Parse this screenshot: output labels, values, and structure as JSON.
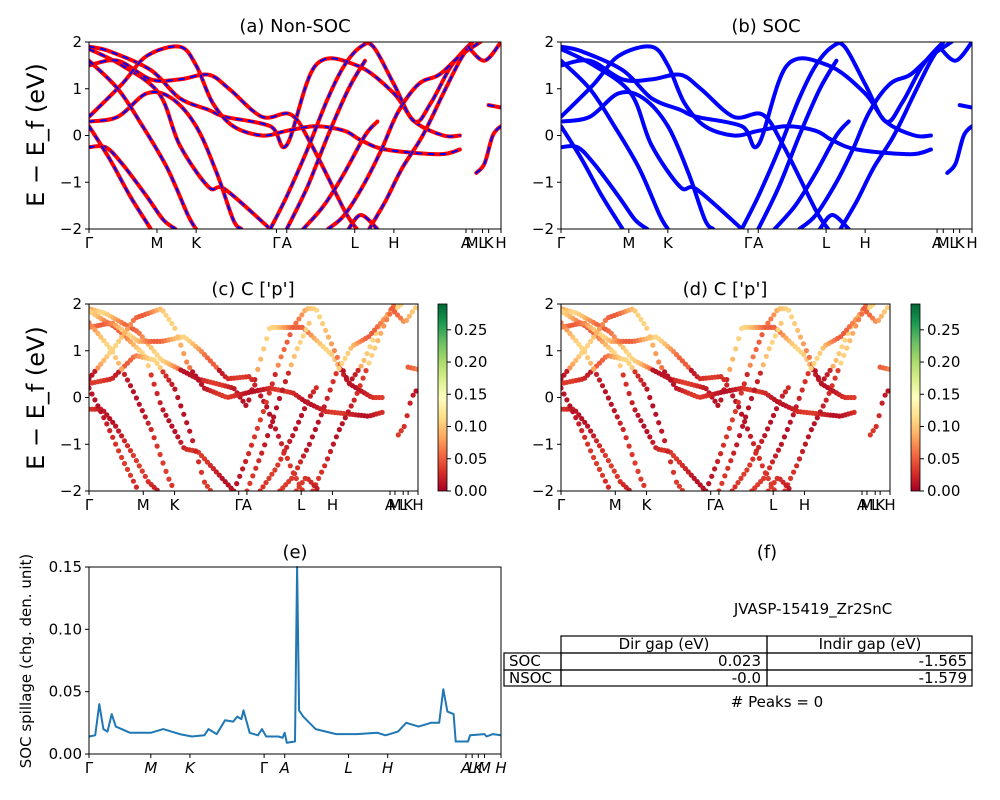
{
  "chart_data": [
    {
      "type": "line",
      "title": "(a) Non-SOC",
      "ylabel": "E − E_f (eV)",
      "ylim": [
        -2,
        2
      ],
      "yticks": [
        "2",
        "1",
        "0",
        "−1",
        "−2"
      ],
      "kpath_labels": [
        "Γ",
        "M",
        "K",
        "Γ",
        "A",
        "L",
        "H",
        "A",
        "M",
        "L",
        "K",
        "H"
      ],
      "series": [
        {
          "color": "#ff0000",
          "bands": [
            [
              [
                0,
                1.9
              ],
              [
                0.05,
                1.8
              ],
              [
                0.15,
                1.4
              ],
              [
                0.22,
                0.8
              ],
              [
                0.29,
                0.55
              ],
              [
                0.33,
                0.4
              ],
              [
                0.44,
                0.2
              ],
              [
                0.48,
                -0.2
              ],
              [
                0.55,
                1.5
              ],
              [
                0.65,
                1.5
              ],
              [
                0.74,
                0.9
              ],
              [
                0.79,
                0.3
              ],
              [
                0.86,
                0.0
              ],
              [
                0.9,
                0.0
              ]
            ],
            [
              [
                0,
                1.85
              ],
              [
                0.08,
                1.5
              ],
              [
                0.17,
                0.9
              ],
              [
                0.22,
                -0.2
              ],
              [
                0.29,
                -1.1
              ],
              [
                0.33,
                -1.15
              ],
              [
                0.44,
                -2
              ]
            ],
            [
              [
                0,
                1.5
              ],
              [
                0.07,
                1.6
              ],
              [
                0.15,
                1.2
              ],
              [
                0.22,
                1.2
              ],
              [
                0.29,
                1.3
              ],
              [
                0.34,
                1.0
              ],
              [
                0.42,
                0.4
              ],
              [
                0.49,
                0.45
              ],
              [
                0.54,
                -0.2
              ],
              [
                0.62,
                -1.6
              ],
              [
                0.65,
                -2
              ]
            ],
            [
              [
                0,
                0.4
              ],
              [
                0.08,
                1.1
              ],
              [
                0.14,
                1.7
              ],
              [
                0.22,
                1.9
              ],
              [
                0.26,
                1.5
              ],
              [
                0.3,
                0.7
              ],
              [
                0.35,
                0.2
              ],
              [
                0.42,
                0.0
              ],
              [
                0.48,
                0.1
              ],
              [
                0.55,
                0.2
              ],
              [
                0.62,
                0.1
              ],
              [
                0.66,
                -0.1
              ],
              [
                0.72,
                -0.3
              ],
              [
                0.85,
                -0.4
              ],
              [
                0.9,
                -0.3
              ]
            ],
            [
              [
                0,
                0.3
              ],
              [
                0.07,
                0.4
              ],
              [
                0.14,
                0.9
              ],
              [
                0.2,
                0.8
              ],
              [
                0.26,
                0.2
              ],
              [
                0.31,
                -0.8
              ],
              [
                0.35,
                -1.8
              ],
              [
                0.37,
                -2
              ]
            ],
            [
              [
                0,
                -0.25
              ],
              [
                0.04,
                -0.25
              ],
              [
                0.08,
                -0.6
              ],
              [
                0.14,
                -1.3
              ],
              [
                0.18,
                -1.8
              ],
              [
                0.21,
                -2
              ]
            ],
            [
              [
                0,
                0.2
              ],
              [
                0.05,
                -0.5
              ],
              [
                0.1,
                -1.3
              ],
              [
                0.15,
                -2
              ]
            ],
            [
              [
                0,
                1.6
              ],
              [
                0.07,
                1.0
              ],
              [
                0.13,
                0.2
              ],
              [
                0.19,
                -0.7
              ],
              [
                0.24,
                -1.7
              ],
              [
                0.26,
                -2
              ]
            ],
            [
              [
                0.44,
                -2
              ],
              [
                0.48,
                -1.3
              ],
              [
                0.53,
                -0.3
              ],
              [
                0.58,
                0.8
              ],
              [
                0.62,
                1.5
              ],
              [
                0.66,
                1.9
              ],
              [
                0.69,
                1.9
              ],
              [
                0.74,
                1.1
              ],
              [
                0.79,
                0.3
              ],
              [
                0.83,
                0.7
              ],
              [
                0.88,
                1.5
              ],
              [
                0.93,
                2
              ]
            ],
            [
              [
                0.48,
                -2
              ],
              [
                0.53,
                -1.1
              ],
              [
                0.58,
                0.0
              ],
              [
                0.63,
                1.0
              ],
              [
                0.67,
                1.6
              ]
            ],
            [
              [
                0.58,
                -2
              ],
              [
                0.62,
                -1.7
              ],
              [
                0.67,
                -1.0
              ],
              [
                0.71,
                -0.3
              ],
              [
                0.75,
                0.5
              ],
              [
                0.8,
                1.1
              ],
              [
                0.85,
                1.3
              ],
              [
                0.9,
                1.7
              ],
              [
                0.95,
                2
              ]
            ],
            [
              [
                0.52,
                -2
              ],
              [
                0.57,
                -1.5
              ],
              [
                0.62,
                -0.8
              ],
              [
                0.67,
                0.0
              ],
              [
                0.7,
                0.3
              ]
            ],
            [
              [
                0.68,
                -2
              ],
              [
                0.72,
                -1.4
              ],
              [
                0.76,
                -0.7
              ],
              [
                0.81,
                0.0
              ],
              [
                0.86,
                0.9
              ],
              [
                0.9,
                1.6
              ],
              [
                0.93,
                2
              ]
            ],
            [
              [
                0.63,
                -2
              ],
              [
                0.66,
                -1.7
              ],
              [
                0.7,
                -2
              ]
            ],
            [
              [
                0.94,
                -0.8
              ],
              [
                0.96,
                -0.6
              ],
              [
                0.98,
                0.0
              ],
              [
                1.0,
                0.2
              ]
            ],
            [
              [
                0.97,
                0.65
              ],
              [
                1.0,
                0.6
              ]
            ],
            [
              [
                0.92,
                1.9
              ],
              [
                0.96,
                1.6
              ],
              [
                1.0,
                2
              ]
            ]
          ]
        },
        {
          "color": "#0000ff",
          "dashed": true
        }
      ]
    },
    {
      "type": "line",
      "title": "(b) SOC",
      "ylim": [
        -2,
        2
      ],
      "yticks": [
        "2",
        "1",
        "0",
        "−1",
        "−2"
      ],
      "kpath_labels": [
        "Γ",
        "M",
        "K",
        "Γ",
        "A",
        "L",
        "H",
        "A",
        "M",
        "L",
        "K",
        "H"
      ],
      "series": [
        {
          "color": "#0000ff"
        }
      ]
    },
    {
      "type": "scatter",
      "title": "(c)  C ['p']",
      "ylabel": "E − E_f (eV)",
      "ylim": [
        -2,
        2
      ],
      "yticks": [
        "2",
        "1",
        "0",
        "−1",
        "−2"
      ],
      "kpath_labels": [
        "Γ",
        "M",
        "K",
        "Γ",
        "A",
        "L",
        "H",
        "A",
        "M",
        "L",
        "K",
        "H"
      ],
      "colorbar": {
        "min": 0.0,
        "max": 0.29,
        "ticks": [
          "0.25",
          "0.20",
          "0.15",
          "0.10",
          "0.05",
          "0.00"
        ],
        "colormap": "RdYlGn"
      }
    },
    {
      "type": "scatter",
      "title": "(d) C ['p']",
      "ylim": [
        -2,
        2
      ],
      "yticks": [
        "2",
        "1",
        "0",
        "−1",
        "−2"
      ],
      "kpath_labels": [
        "Γ",
        "M",
        "K",
        "Γ",
        "A",
        "L",
        "H",
        "A",
        "M",
        "L",
        "K",
        "H"
      ],
      "colorbar": {
        "min": 0.0,
        "max": 0.29,
        "ticks": [
          "0.25",
          "0.20",
          "0.15",
          "0.10",
          "0.05",
          "0.00"
        ],
        "colormap": "RdYlGn"
      }
    },
    {
      "type": "line",
      "title": "(e)",
      "ylabel": "SOC spillage (chg. den. unit)",
      "ylim": [
        0,
        0.15
      ],
      "yticks": [
        "0.15",
        "0.10",
        "0.05",
        "0.00"
      ],
      "kpath_labels": [
        "Γ",
        "M",
        "K",
        "Γ",
        "A",
        "L",
        "H",
        "A",
        "L",
        "K",
        "M",
        "H"
      ],
      "color": "#1f77b4",
      "points": [
        [
          0,
          0.014
        ],
        [
          0.015,
          0.015
        ],
        [
          0.025,
          0.04
        ],
        [
          0.035,
          0.02
        ],
        [
          0.045,
          0.018
        ],
        [
          0.055,
          0.032
        ],
        [
          0.065,
          0.022
        ],
        [
          0.1,
          0.017
        ],
        [
          0.15,
          0.017
        ],
        [
          0.18,
          0.02
        ],
        [
          0.22,
          0.016
        ],
        [
          0.25,
          0.014
        ],
        [
          0.28,
          0.015
        ],
        [
          0.29,
          0.02
        ],
        [
          0.31,
          0.016
        ],
        [
          0.33,
          0.027
        ],
        [
          0.35,
          0.026
        ],
        [
          0.36,
          0.03
        ],
        [
          0.37,
          0.028
        ],
        [
          0.375,
          0.035
        ],
        [
          0.39,
          0.017
        ],
        [
          0.41,
          0.015
        ],
        [
          0.42,
          0.02
        ],
        [
          0.43,
          0.014
        ],
        [
          0.46,
          0.014
        ],
        [
          0.47,
          0.013
        ],
        [
          0.475,
          0.017
        ],
        [
          0.48,
          0.009
        ],
        [
          0.5,
          0.01
        ],
        [
          0.505,
          0.15
        ],
        [
          0.51,
          0.035
        ],
        [
          0.52,
          0.03
        ],
        [
          0.55,
          0.02
        ],
        [
          0.6,
          0.016
        ],
        [
          0.65,
          0.016
        ],
        [
          0.7,
          0.017
        ],
        [
          0.72,
          0.015
        ],
        [
          0.75,
          0.018
        ],
        [
          0.77,
          0.025
        ],
        [
          0.8,
          0.022
        ],
        [
          0.83,
          0.025
        ],
        [
          0.85,
          0.025
        ],
        [
          0.86,
          0.052
        ],
        [
          0.87,
          0.034
        ],
        [
          0.885,
          0.032
        ],
        [
          0.89,
          0.01
        ],
        [
          0.92,
          0.01
        ],
        [
          0.925,
          0.015
        ],
        [
          0.96,
          0.016
        ],
        [
          0.965,
          0.014
        ],
        [
          0.98,
          0.016
        ],
        [
          1.0,
          0.015
        ]
      ]
    },
    {
      "type": "table",
      "title": "(f)",
      "subtitle": "JVASP-15419_Zr2SnC",
      "columns": [
        "Dir gap (eV)",
        "Indir gap (eV)"
      ],
      "rows": [
        {
          "label": "SOC",
          "values": [
            "0.023",
            "-1.565"
          ]
        },
        {
          "label": "NSOC",
          "values": [
            "-0.0",
            "-1.579"
          ]
        }
      ],
      "footer": "# Peaks = 0"
    }
  ]
}
